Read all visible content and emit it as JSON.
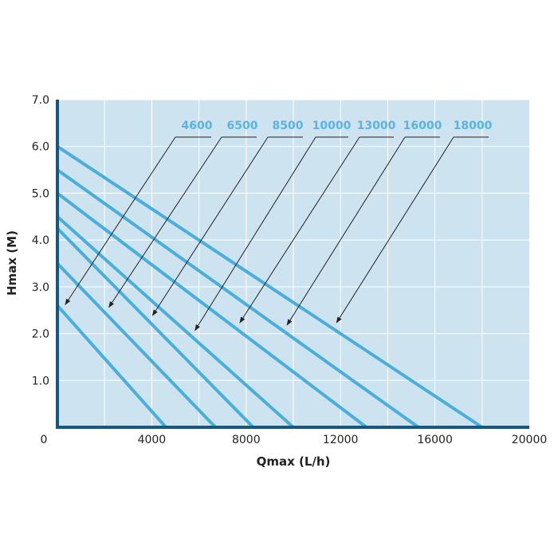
{
  "chart_data": {
    "type": "line",
    "title": "",
    "xlabel": "Qmax (L/h)",
    "ylabel": "Hmax (M)",
    "xlim": [
      0,
      20000
    ],
    "ylim": [
      0,
      7
    ],
    "grid": true,
    "x_ticks": [
      "0",
      "4000",
      "8000",
      "12000",
      "16000",
      "20000"
    ],
    "x_tick_values": [
      0,
      4000,
      8000,
      12000,
      16000,
      20000
    ],
    "y_ticks": [
      "1.0",
      "2.0",
      "3.0",
      "4.0",
      "5.0",
      "6.0",
      "7.0"
    ],
    "y_tick_values": [
      1,
      2,
      3,
      4,
      5,
      6,
      7
    ],
    "series": [
      {
        "name": "4600",
        "x": [
          0,
          4600
        ],
        "y": [
          2.6,
          0
        ]
      },
      {
        "name": "6500",
        "x": [
          0,
          6700
        ],
        "y": [
          3.5,
          0
        ]
      },
      {
        "name": "8500",
        "x": [
          0,
          8300
        ],
        "y": [
          4.25,
          0
        ]
      },
      {
        "name": "10000",
        "x": [
          0,
          10000
        ],
        "y": [
          4.5,
          0
        ]
      },
      {
        "name": "13000",
        "x": [
          0,
          13100
        ],
        "y": [
          5.0,
          0
        ]
      },
      {
        "name": "16000",
        "x": [
          0,
          15300
        ],
        "y": [
          5.5,
          0
        ]
      },
      {
        "name": "18000",
        "x": [
          0,
          18000
        ],
        "y": [
          6.0,
          0
        ]
      }
    ],
    "colors": {
      "plot_background": "#cde3f0",
      "grid": "#ffffff",
      "series_line": "#4aaedb",
      "series_label": "#5ab3e0",
      "axis": "#15577e",
      "annotation": "#222222"
    }
  }
}
